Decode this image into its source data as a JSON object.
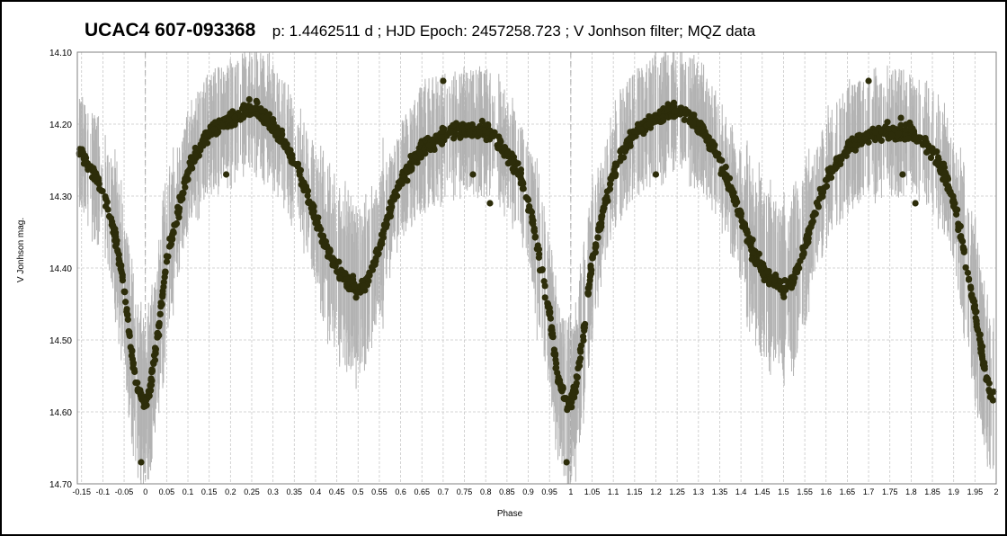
{
  "chart_data": {
    "type": "scatter",
    "title": "UCAC4 607-093368",
    "subtitle": "p: 1.4462511 d ; HJD Epoch: 2457258.723 ; V Jonhson filter; MQZ data",
    "xlabel": "Phase",
    "ylabel": "V Jonhson mag.",
    "xlim": [
      -0.16,
      2.0
    ],
    "ylim": [
      14.7,
      14.1
    ],
    "y_inverted": true,
    "grid": true,
    "legend": "none",
    "x_ticks": [
      "-0.15",
      "-0.1",
      "-0.05",
      "0",
      "0.05",
      "0.1",
      "0.15",
      "0.2",
      "0.25",
      "0.3",
      "0.35",
      "0.4",
      "0.45",
      "0.5",
      "0.55",
      "0.6",
      "0.65",
      "0.7",
      "0.75",
      "0.8",
      "0.85",
      "0.9",
      "0.95",
      "1",
      "1.05",
      "1.1",
      "1.15",
      "1.2",
      "1.25",
      "1.3",
      "1.35",
      "1.4",
      "1.45",
      "1.5",
      "1.55",
      "1.6",
      "1.65",
      "1.7",
      "1.75",
      "1.8",
      "1.85",
      "1.9",
      "1.95",
      "2"
    ],
    "y_ticks": [
      "14.10",
      "14.20",
      "14.30",
      "14.40",
      "14.50",
      "14.60",
      "14.70"
    ],
    "colors": {
      "points": "#2d2d0a",
      "error_bars": "#b3b3b3",
      "grid": "#c8c8c8"
    },
    "series": [
      {
        "marker": "filled-circle",
        "error_bars": true,
        "x": [
          -0.15,
          -0.13,
          -0.11,
          -0.09,
          -0.07,
          -0.05,
          -0.04,
          -0.03,
          -0.02,
          -0.01,
          0.0,
          0.01,
          0.02,
          0.03,
          0.04,
          0.05,
          0.07,
          0.09,
          0.11,
          0.13,
          0.15,
          0.18,
          0.21,
          0.24,
          0.26,
          0.28,
          0.31,
          0.34,
          0.37,
          0.4,
          0.43,
          0.46,
          0.48,
          0.5,
          0.52,
          0.54,
          0.57,
          0.6,
          0.63,
          0.66,
          0.69,
          0.72,
          0.75,
          0.77,
          0.8,
          0.82,
          0.85,
          0.88,
          0.91,
          0.93,
          0.95,
          0.96,
          0.97,
          0.98,
          0.99,
          1.0,
          1.01,
          1.02,
          1.03,
          1.04,
          1.05,
          1.07,
          1.09,
          1.11,
          1.13,
          1.15,
          1.18,
          1.21,
          1.24,
          1.26,
          1.28,
          1.31,
          1.34,
          1.37,
          1.4,
          1.43,
          1.46,
          1.48,
          1.5,
          1.52,
          1.54,
          1.57,
          1.6,
          1.63,
          1.66,
          1.69,
          1.72,
          1.75,
          1.77,
          1.8,
          1.82,
          1.85,
          1.88,
          1.91,
          1.93,
          1.95,
          1.97,
          1.99
        ],
        "y": [
          14.24,
          14.26,
          14.28,
          14.31,
          14.36,
          14.43,
          14.48,
          14.53,
          14.56,
          14.58,
          14.59,
          14.57,
          14.53,
          14.49,
          14.44,
          14.39,
          14.34,
          14.29,
          14.25,
          14.23,
          14.21,
          14.2,
          14.19,
          14.18,
          14.18,
          14.19,
          14.21,
          14.24,
          14.28,
          14.33,
          14.38,
          14.41,
          14.42,
          14.43,
          14.42,
          14.39,
          14.33,
          14.28,
          14.25,
          14.23,
          14.22,
          14.21,
          14.21,
          14.21,
          14.21,
          14.22,
          14.24,
          14.27,
          14.33,
          14.4,
          14.46,
          14.51,
          14.55,
          14.57,
          14.59,
          14.59,
          14.57,
          14.53,
          14.49,
          14.44,
          14.39,
          14.34,
          14.29,
          14.25,
          14.23,
          14.21,
          14.2,
          14.19,
          14.18,
          14.18,
          14.19,
          14.21,
          14.24,
          14.28,
          14.33,
          14.38,
          14.41,
          14.42,
          14.43,
          14.42,
          14.39,
          14.33,
          14.28,
          14.25,
          14.23,
          14.22,
          14.21,
          14.21,
          14.21,
          14.21,
          14.22,
          14.24,
          14.27,
          14.33,
          14.4,
          14.46,
          14.53,
          14.58
        ],
        "outliers_x": [
          -0.01,
          0.19,
          0.7,
          0.77,
          0.81,
          0.99,
          1.2,
          1.7,
          1.78,
          1.81
        ],
        "outliers_y": [
          14.67,
          14.27,
          14.14,
          14.27,
          14.31,
          14.67,
          14.27,
          14.14,
          14.27,
          14.31
        ]
      }
    ]
  }
}
